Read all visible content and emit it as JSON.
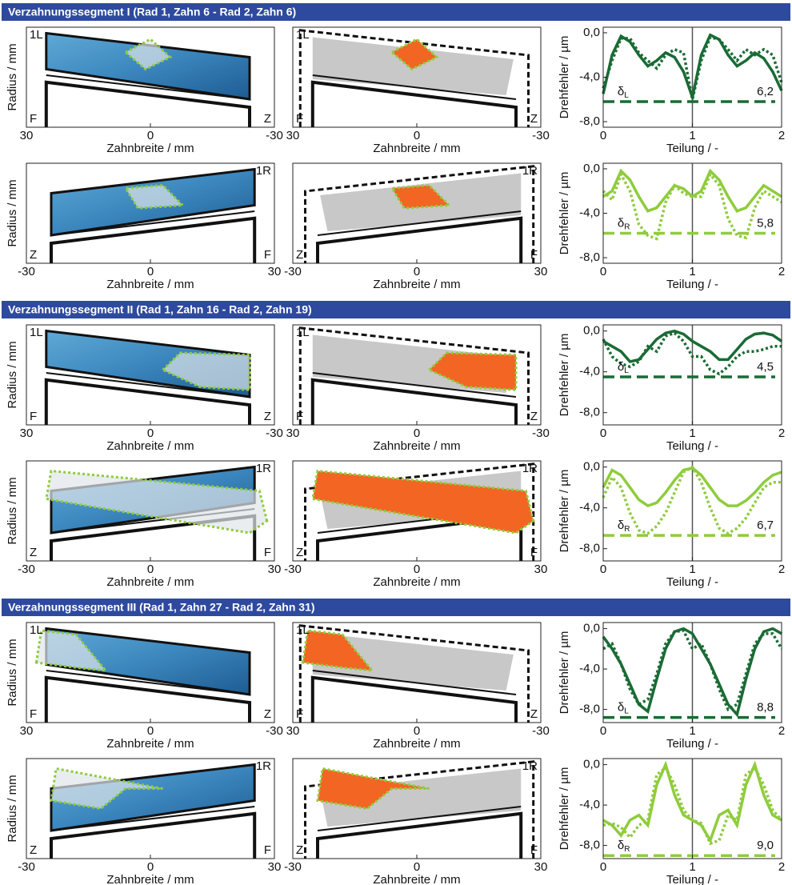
{
  "segments": [
    {
      "title": "Verzahnungssegment I (Rad 1, Zahn 6 - Rad 2, Zahn 6)"
    },
    {
      "title": "Verzahnungssegment II (Rad 1, Zahn 16 - Rad 2, Zahn 19)"
    },
    {
      "title": "Verzahnungssegment III (Rad 1, Zahn 27 - Rad 2, Zahn 31)"
    }
  ],
  "flank_panels": [
    {
      "xlabel": "Zahnbreite / mm",
      "ylabel": "Radius / mm",
      "xlim": [
        30,
        -30
      ],
      "xticks": [
        30,
        0,
        -30
      ],
      "label_top": "1L",
      "label_left": "F",
      "label_right": "Z"
    },
    {
      "xlabel": "Zahnbreite / mm",
      "xlim": [
        30,
        -30
      ],
      "xticks": [
        30,
        0,
        -30
      ],
      "label_top": "1L",
      "label_left": "F",
      "label_right": "Z"
    },
    {
      "xlabel": "Zahnbreite / mm",
      "ylabel": "Radius / mm",
      "xlim": [
        -30,
        30
      ],
      "xticks": [
        -30,
        0,
        30
      ],
      "label_top": "1R",
      "label_left": "Z",
      "label_right": "F"
    },
    {
      "xlabel": "Zahnbreite / mm",
      "xlim": [
        -30,
        30
      ],
      "xticks": [
        -30,
        0,
        30
      ],
      "label_top": "1R",
      "label_left": "Z",
      "label_right": "F"
    },
    {
      "xlabel": "Zahnbreite / mm",
      "ylabel": "Radius / mm",
      "xlim": [
        30,
        -30
      ],
      "xticks": [
        30,
        0,
        -30
      ],
      "label_top": "1L",
      "label_left": "F",
      "label_right": "Z"
    },
    {
      "xlabel": "Zahnbreite / mm",
      "xlim": [
        30,
        -30
      ],
      "xticks": [
        30,
        0,
        -30
      ],
      "label_top": "1L",
      "label_left": "F",
      "label_right": "Z"
    },
    {
      "xlabel": "Zahnbreite / mm",
      "ylabel": "Radius / mm",
      "xlim": [
        -30,
        30
      ],
      "xticks": [
        -30,
        0,
        30
      ],
      "label_top": "1R",
      "label_left": "Z",
      "label_right": "F"
    },
    {
      "xlabel": "Zahnbreite / mm",
      "xlim": [
        -30,
        30
      ],
      "xticks": [
        -30,
        0,
        30
      ],
      "label_top": "1R",
      "label_left": "Z",
      "label_right": "F"
    },
    {
      "xlabel": "Zahnbreite / mm",
      "ylabel": "Radius / mm",
      "xlim": [
        30,
        -30
      ],
      "xticks": [
        30,
        0,
        -30
      ],
      "label_top": "1L",
      "label_left": "F",
      "label_right": "Z"
    },
    {
      "xlabel": "Zahnbreite / mm",
      "xlim": [
        30,
        -30
      ],
      "xticks": [
        30,
        0,
        -30
      ],
      "label_top": "1L",
      "label_left": "F",
      "label_right": "Z"
    },
    {
      "xlabel": "Zahnbreite / mm",
      "ylabel": "Radius / mm",
      "xlim": [
        -30,
        30
      ],
      "xticks": [
        -30,
        0,
        30
      ],
      "label_top": "1R",
      "label_left": "Z",
      "label_right": "F"
    },
    {
      "xlabel": "Zahnbreite / mm",
      "xlim": [
        -30,
        30
      ],
      "xticks": [
        -30,
        0,
        30
      ],
      "label_top": "1R",
      "label_left": "Z",
      "label_right": "F"
    }
  ],
  "chart_data": [
    {
      "type": "line",
      "xlabel": "Teilung / -",
      "ylabel": "Drehfehler / µm",
      "x": [
        0,
        0.1,
        0.2,
        0.3,
        0.4,
        0.5,
        0.6,
        0.7,
        0.8,
        0.9,
        1,
        1.1,
        1.2,
        1.3,
        1.4,
        1.5,
        1.6,
        1.7,
        1.8,
        1.9,
        2
      ],
      "xlim": [
        0,
        2
      ],
      "xticks": [
        0,
        1,
        2
      ],
      "ylim": [
        -8.5,
        0.5
      ],
      "yticks": [
        {
          "value": 0,
          "label": "0,0"
        },
        {
          "value": -4,
          "label": "-4,0"
        },
        {
          "value": -8,
          "label": "-8,0"
        }
      ],
      "vline": 1,
      "delta": {
        "value": -6.2,
        "label": "6,2"
      },
      "delta_symbol": "δ",
      "delta_subscript": "L",
      "series": [
        {
          "color": "#1a6b35",
          "style": "solid",
          "values": [
            -5.5,
            -2,
            -0.3,
            -0.8,
            -2,
            -3,
            -2.5,
            -1.8,
            -2.2,
            -3.5,
            -5.8,
            -2,
            -0.2,
            -0.6,
            -2,
            -3,
            -2.5,
            -1.8,
            -2.3,
            -3.5,
            -5.2
          ]
        },
        {
          "color": "#1a6b35",
          "style": "dotted",
          "values": [
            -5,
            -2.5,
            -0.5,
            -0.5,
            -1.8,
            -2.5,
            -3.2,
            -2,
            -1.5,
            -1.8,
            -6,
            -2.5,
            -0.4,
            -0.6,
            -1.5,
            -2.5,
            -1.5,
            -2,
            -1.5,
            -2,
            -4.5
          ]
        }
      ]
    },
    {
      "type": "line",
      "xlabel": "Teilung / -",
      "ylabel": "Drehfehler / µm",
      "x": [
        0,
        0.1,
        0.2,
        0.3,
        0.4,
        0.5,
        0.6,
        0.7,
        0.8,
        0.9,
        1,
        1.1,
        1.2,
        1.3,
        1.4,
        1.5,
        1.6,
        1.7,
        1.8,
        1.9,
        2
      ],
      "xlim": [
        0,
        2
      ],
      "xticks": [
        0,
        1,
        2
      ],
      "ylim": [
        -8.5,
        0.5
      ],
      "yticks": [
        {
          "value": 0,
          "label": "0,0"
        },
        {
          "value": -4,
          "label": "-4,0"
        },
        {
          "value": -8,
          "label": "-8,0"
        }
      ],
      "vline": 1,
      "delta": {
        "value": -5.8,
        "label": "5,8"
      },
      "delta_symbol": "δ",
      "delta_subscript": "R",
      "series": [
        {
          "color": "#8fcc3c",
          "style": "solid",
          "values": [
            -2.5,
            -2,
            -0.2,
            -1,
            -2.5,
            -3.8,
            -3.5,
            -2.5,
            -1.5,
            -1.8,
            -2.5,
            -2,
            -0.2,
            -1,
            -2.5,
            -3.8,
            -3.5,
            -2.5,
            -1.5,
            -2,
            -2.5
          ]
        },
        {
          "color": "#8fcc3c",
          "style": "dotted",
          "values": [
            -2,
            -2.8,
            -0.5,
            -2,
            -5,
            -6,
            -6.3,
            -3,
            -1.5,
            -2.2,
            -2.5,
            -2.5,
            -0.5,
            -1.5,
            -4.5,
            -6,
            -6.2,
            -3.5,
            -2,
            -2.5,
            -3
          ]
        }
      ]
    },
    {
      "type": "line",
      "xlabel": "Teilung / -",
      "ylabel": "Drehfehler / µm",
      "x": [
        0,
        0.1,
        0.2,
        0.3,
        0.4,
        0.5,
        0.6,
        0.7,
        0.8,
        0.9,
        1,
        1.1,
        1.2,
        1.3,
        1.4,
        1.5,
        1.6,
        1.7,
        1.8,
        1.9,
        2
      ],
      "xlim": [
        0,
        2
      ],
      "xticks": [
        0,
        1,
        2
      ],
      "ylim": [
        -9.2,
        0.6
      ],
      "yticks": [
        {
          "value": 0,
          "label": "0,0"
        },
        {
          "value": -4,
          "label": "-4,0"
        },
        {
          "value": -8,
          "label": "-8,0"
        }
      ],
      "vline": 1,
      "delta": {
        "value": -4.5,
        "label": "4,5"
      },
      "delta_symbol": "δ",
      "delta_subscript": "L",
      "series": [
        {
          "color": "#1a6b35",
          "style": "solid",
          "values": [
            -1,
            -1.5,
            -2,
            -3,
            -2.8,
            -1.8,
            -0.8,
            -0.2,
            0,
            -0.3,
            -1,
            -1.5,
            -2,
            -2.8,
            -2.8,
            -1.8,
            -0.8,
            -0.3,
            -0.2,
            -0.4,
            -1
          ]
        },
        {
          "color": "#1a6b35",
          "style": "dotted",
          "values": [
            -0.8,
            -2.5,
            -3.2,
            -3.5,
            -3,
            -1.5,
            -2,
            -0.5,
            -0.2,
            -1,
            -2.5,
            -2.5,
            -3.8,
            -4.2,
            -3.5,
            -2.5,
            -2,
            -2,
            -1.8,
            -1.5,
            -1.5
          ]
        }
      ]
    },
    {
      "type": "line",
      "xlabel": "Teilung / -",
      "ylabel": "Drehfehler / µm",
      "x": [
        0,
        0.1,
        0.2,
        0.3,
        0.4,
        0.5,
        0.6,
        0.7,
        0.8,
        0.9,
        1,
        1.1,
        1.2,
        1.3,
        1.4,
        1.5,
        1.6,
        1.7,
        1.8,
        1.9,
        2
      ],
      "xlim": [
        0,
        2
      ],
      "xticks": [
        0,
        1,
        2
      ],
      "ylim": [
        -9.2,
        0.6
      ],
      "yticks": [
        {
          "value": 0,
          "label": "0,0"
        },
        {
          "value": -4,
          "label": "-4,0"
        },
        {
          "value": -8,
          "label": "-8,0"
        }
      ],
      "vline": 1,
      "delta": {
        "value": -6.7,
        "label": "6,7"
      },
      "delta_symbol": "δ",
      "delta_subscript": "R",
      "series": [
        {
          "color": "#8fcc3c",
          "style": "solid",
          "values": [
            -2,
            -0.3,
            -0.8,
            -2,
            -3.2,
            -3.8,
            -3.5,
            -2.5,
            -1.3,
            -0.3,
            -0.1,
            -0.8,
            -2,
            -3.2,
            -3.8,
            -3.8,
            -3.3,
            -2.5,
            -1.5,
            -0.8,
            -0.5
          ]
        },
        {
          "color": "#8fcc3c",
          "style": "dotted",
          "values": [
            -3,
            -1,
            -2,
            -4.5,
            -6.2,
            -6.5,
            -5.8,
            -4.5,
            -2.5,
            -0.5,
            0,
            -1.5,
            -4,
            -6,
            -6.5,
            -6,
            -5,
            -3.5,
            -2,
            -1.5,
            -1.5
          ]
        }
      ]
    },
    {
      "type": "line",
      "xlabel": "Teilung / -",
      "ylabel": "Drehfehler / µm",
      "x": [
        0,
        0.1,
        0.2,
        0.3,
        0.4,
        0.5,
        0.6,
        0.7,
        0.8,
        0.9,
        1,
        1.1,
        1.2,
        1.3,
        1.4,
        1.5,
        1.6,
        1.7,
        1.8,
        1.9,
        2
      ],
      "xlim": [
        0,
        2
      ],
      "xticks": [
        0,
        1,
        2
      ],
      "ylim": [
        -9.3,
        0.6
      ],
      "yticks": [
        {
          "value": 0,
          "label": "0,0"
        },
        {
          "value": -4,
          "label": "-4,0"
        },
        {
          "value": -8,
          "label": "-8,0"
        }
      ],
      "vline": 1,
      "delta": {
        "value": -8.8,
        "label": "8,8"
      },
      "delta_symbol": "δ",
      "delta_subscript": "L",
      "series": [
        {
          "color": "#1a6b35",
          "style": "solid",
          "values": [
            -0.8,
            -2,
            -3.5,
            -5.5,
            -7.5,
            -8.2,
            -5,
            -2,
            -0.3,
            0,
            -0.5,
            -2,
            -3.5,
            -5.5,
            -7.5,
            -8.5,
            -5,
            -2,
            -0.3,
            0,
            -0.5
          ]
        },
        {
          "color": "#1a6b35",
          "style": "dotted",
          "values": [
            -2,
            -1.5,
            -3.5,
            -6,
            -7.5,
            -7,
            -4.5,
            -1.5,
            -0.3,
            -0.2,
            -2,
            -1.5,
            -3.5,
            -6,
            -8,
            -7.5,
            -4.5,
            -1.5,
            -0.5,
            -0.5,
            -2
          ]
        }
      ]
    },
    {
      "type": "line",
      "xlabel": "Teilung / -",
      "ylabel": "Drehfehler / µm",
      "x": [
        0,
        0.1,
        0.2,
        0.3,
        0.4,
        0.5,
        0.6,
        0.7,
        0.8,
        0.9,
        1,
        1.1,
        1.2,
        1.3,
        1.4,
        1.5,
        1.6,
        1.7,
        1.8,
        1.9,
        2
      ],
      "xlim": [
        0,
        2
      ],
      "xticks": [
        0,
        1,
        2
      ],
      "ylim": [
        -9.3,
        0.6
      ],
      "yticks": [
        {
          "value": 0,
          "label": "0,0"
        },
        {
          "value": -4,
          "label": "-4,0"
        },
        {
          "value": -8,
          "label": "-8,0"
        }
      ],
      "vline": 1,
      "delta": {
        "value": -9.0,
        "label": "9,0"
      },
      "delta_symbol": "δ",
      "delta_subscript": "R",
      "series": [
        {
          "color": "#8fcc3c",
          "style": "solid",
          "values": [
            -5.5,
            -6,
            -7,
            -5.5,
            -5,
            -6,
            -2,
            0,
            -3,
            -5,
            -5.5,
            -6,
            -7.5,
            -5,
            -4.5,
            -6,
            -2,
            0,
            -3,
            -5,
            -5.5
          ]
        },
        {
          "color": "#8fcc3c",
          "style": "dotted",
          "values": [
            -6,
            -5.8,
            -6.2,
            -7.2,
            -6,
            -5.5,
            -1,
            -0.3,
            -2,
            -4.5,
            -5.5,
            -5.8,
            -7.8,
            -7.5,
            -5,
            -5.5,
            -1,
            -0.3,
            -2,
            -4.5,
            -5.5
          ]
        }
      ]
    }
  ]
}
